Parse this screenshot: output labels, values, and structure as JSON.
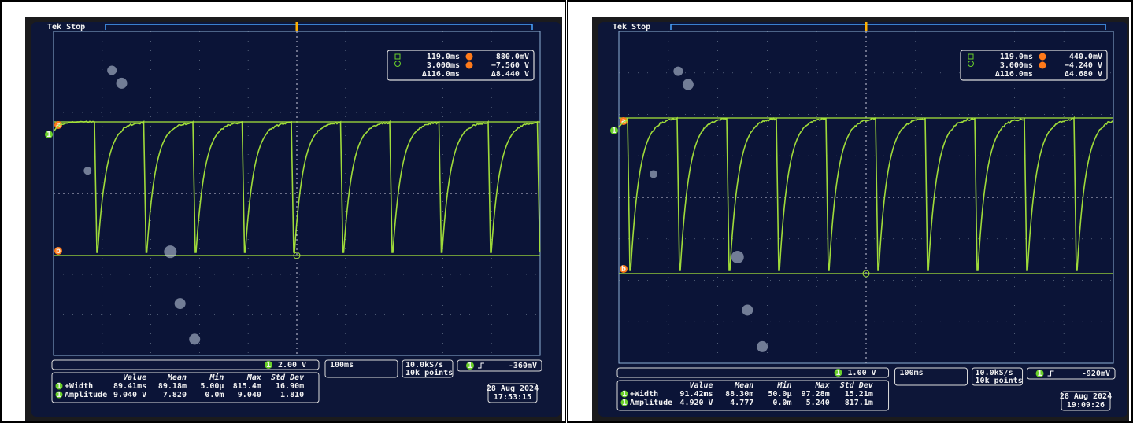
{
  "panels": [
    {
      "status": "Tek Stop",
      "cursor": {
        "t1": "119.0ms",
        "v1": "880.0mV",
        "t2": "3.000ms",
        "v2": "−7.560 V",
        "dt": "Δ116.0ms",
        "dv": "Δ8.440 V",
        "a": "a",
        "b": "b"
      },
      "channel": "1",
      "channel_scale": "2.00 V",
      "timebase": "100ms",
      "sample_rate": "10.0kS/s",
      "record_length": "10k points",
      "trigger_level": "-360mV",
      "measurements": {
        "headers": [
          "Value",
          "Mean",
          "Min",
          "Max",
          "Std Dev"
        ],
        "rows": [
          {
            "name": "+Width",
            "cells": [
              "89.41ms",
              "89.18m",
              "5.00µ",
              "815.4m",
              "16.90m"
            ]
          },
          {
            "name": "Amplitude",
            "cells": [
              "9.040 V",
              "7.820",
              "0.0m",
              "9.040",
              "1.810"
            ]
          }
        ]
      },
      "date": "28 Aug 2024",
      "time": "17:53:15"
    },
    {
      "status": "Tek Stop",
      "cursor": {
        "t1": "119.0ms",
        "v1": "440.0mV",
        "t2": "3.000ms",
        "v2": "−4.240 V",
        "dt": "Δ116.0ms",
        "dv": "Δ4.680 V",
        "a": "a",
        "b": "b"
      },
      "channel": "1",
      "channel_scale": "1.00 V",
      "timebase": "100ms",
      "sample_rate": "10.0kS/s",
      "record_length": "10k points",
      "trigger_level": "-920mV",
      "measurements": {
        "headers": [
          "Value",
          "Mean",
          "Min",
          "Max",
          "Std Dev"
        ],
        "rows": [
          {
            "name": "+Width",
            "cells": [
              "91.42ms",
              "88.30m",
              "50.0µ",
              "97.28m",
              "15.21m"
            ]
          },
          {
            "name": "Amplitude",
            "cells": [
              "4.920 V",
              "4.777",
              "0.0m",
              "5.240",
              "817.1m"
            ]
          }
        ]
      },
      "date": "28 Aug 2024",
      "time": "19:09:26"
    }
  ]
}
